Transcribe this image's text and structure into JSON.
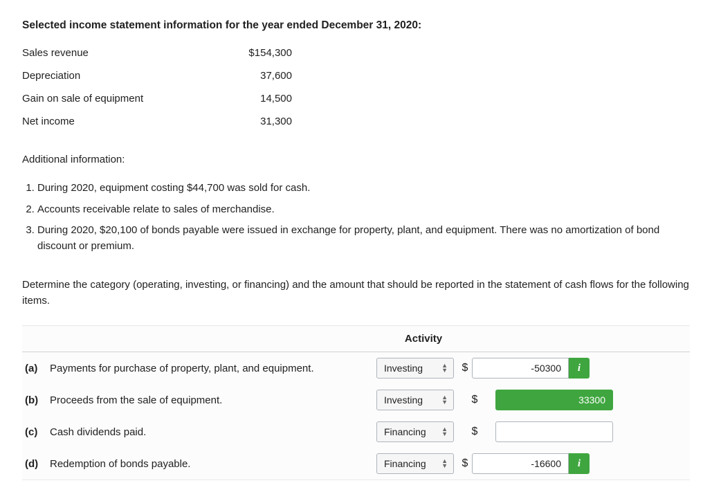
{
  "heading": "Selected income statement information for the year ended December 31, 2020:",
  "income_items": [
    {
      "label": "Sales revenue",
      "value": "$154,300"
    },
    {
      "label": "Depreciation",
      "value": "37,600"
    },
    {
      "label": "Gain on sale of equipment",
      "value": "14,500"
    },
    {
      "label": "Net income",
      "value": "31,300"
    }
  ],
  "additional_label": "Additional information:",
  "additional_items": [
    "During 2020, equipment costing $44,700 was sold for cash.",
    "Accounts receivable relate to sales of merchandise.",
    "During 2020, $20,100 of bonds payable were issued in exchange for property, plant, and equipment. There was no amortization of bond discount or premium."
  ],
  "instruction": "Determine the category (operating, investing, or financing) and the amount that should be reported in the statement of cash flows for the following items.",
  "activity_header": "Activity",
  "dollar_sign": "$",
  "rows": [
    {
      "letter": "(a)",
      "desc": "Payments for purchase of property, plant, and equipment.",
      "activity": "Investing",
      "amount": "-50300",
      "has_info": true,
      "green_fill": false,
      "dollar_offset": "near"
    },
    {
      "letter": "(b)",
      "desc": "Proceeds from the sale of equipment.",
      "activity": "Investing",
      "amount": "33300",
      "has_info": false,
      "green_fill": true,
      "dollar_offset": "far"
    },
    {
      "letter": "(c)",
      "desc": "Cash dividends paid.",
      "activity": "Financing",
      "amount": "",
      "has_info": false,
      "green_fill": false,
      "dollar_offset": "far"
    },
    {
      "letter": "(d)",
      "desc": "Redemption of bonds payable.",
      "activity": "Financing",
      "amount": "-16600",
      "has_info": true,
      "green_fill": false,
      "dollar_offset": "near"
    }
  ]
}
